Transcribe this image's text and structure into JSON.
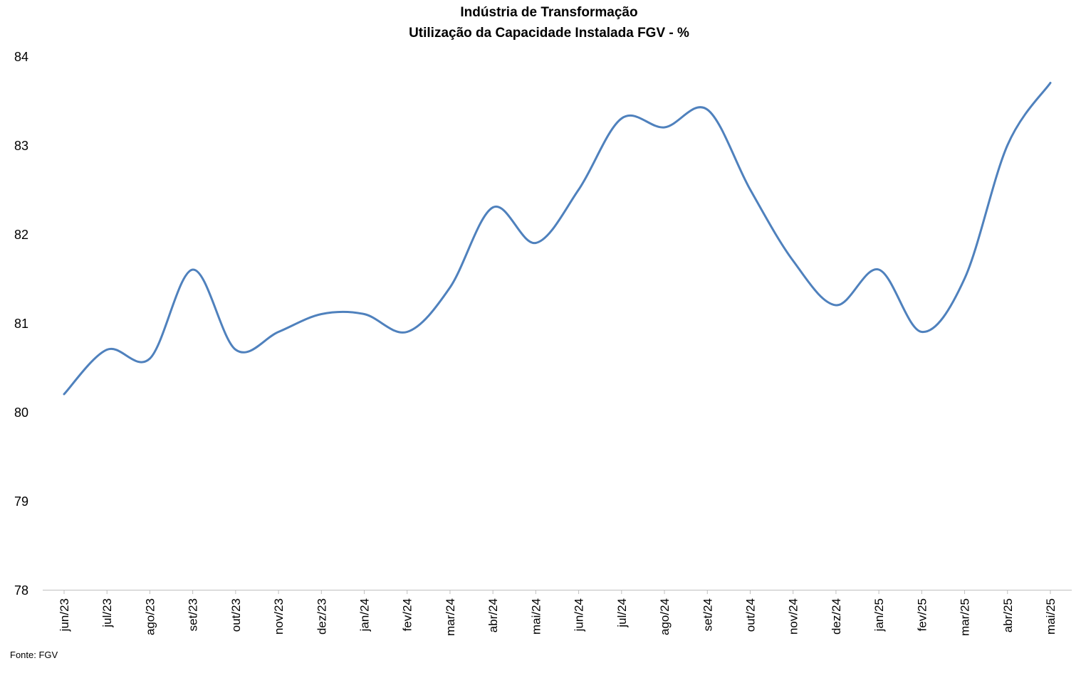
{
  "chart_data": {
    "type": "line",
    "title": "Indústria de Transformação",
    "subtitle": "Utilização da Capacidade Instalada FGV - %",
    "xlabel": "",
    "ylabel": "",
    "categories": [
      "jun/23",
      "jul/23",
      "ago/23",
      "set/23",
      "out/23",
      "nov/23",
      "dez/23",
      "jan/24",
      "fev/24",
      "mar/24",
      "abr/24",
      "mai/24",
      "jun/24",
      "jul/24",
      "ago/24",
      "set/24",
      "out/24",
      "nov/24",
      "dez/24",
      "jan/25",
      "fev/25",
      "mar/25",
      "abr/25",
      "mai/25"
    ],
    "series": [
      {
        "values": [
          80.2,
          80.7,
          80.6,
          81.6,
          80.7,
          80.9,
          81.1,
          81.1,
          80.9,
          81.4,
          82.3,
          81.9,
          82.5,
          83.3,
          83.2,
          83.4,
          82.5,
          81.7,
          81.2,
          81.6,
          80.9,
          81.5,
          83.0,
          83.7
        ],
        "color": "#4F81BD"
      }
    ],
    "ylim": [
      78,
      84
    ],
    "yticks": [
      78,
      79,
      80,
      81,
      82,
      83,
      84
    ],
    "grid": false,
    "legend": "none",
    "smooth": true
  },
  "source_note": "Fonte: FGV"
}
